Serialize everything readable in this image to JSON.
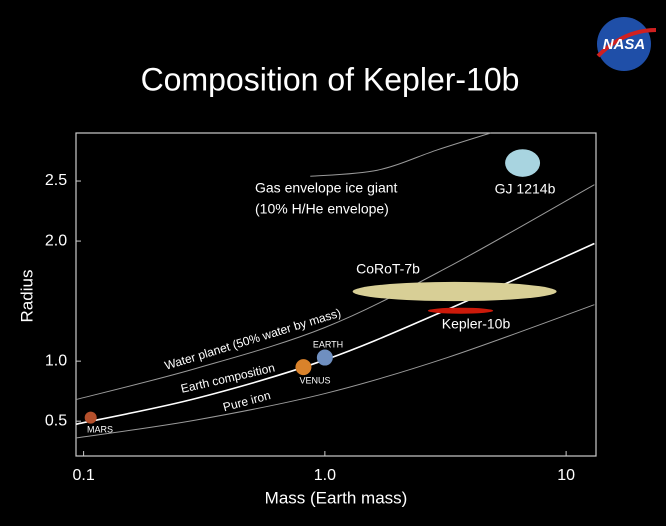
{
  "logo": "NASA",
  "chart_data": {
    "type": "scatter",
    "title": "Composition of Kepler-10b",
    "x_label": "Mass (Earth mass)",
    "y_label": "Radius",
    "xscale": "log",
    "xlim": [
      0.093,
      13.3
    ],
    "ylim": [
      0.21,
      2.9
    ],
    "xticks": [
      {
        "value": 0.1,
        "label": "0.1"
      },
      {
        "value": 1,
        "label": "1.0"
      },
      10
    ],
    "yticks": [
      0.5,
      {
        "value": 1,
        "label": "1.0"
      },
      {
        "value": 2,
        "label": "2.0"
      },
      2.5
    ],
    "curves": [
      {
        "name": "Pure iron",
        "color": "#9a9a9a",
        "mass": [
          0.093,
          0.293,
          1,
          3.22,
          13.1
        ],
        "radius": [
          0.36,
          0.51,
          0.73,
          1.03,
          1.47
        ]
      },
      {
        "name": "Earth composition",
        "color": "#ffffff",
        "mass": [
          0.093,
          0.293,
          1,
          3.22,
          13.1
        ],
        "radius": [
          0.475,
          0.69,
          1.01,
          1.43,
          1.98
        ]
      },
      {
        "name": "Water planet (50% water by mass)",
        "color": "#9a9a9a",
        "mass": [
          0.093,
          0.293,
          1,
          3.22,
          13.1
        ],
        "radius": [
          0.68,
          0.94,
          1.28,
          1.78,
          2.47
        ]
      },
      {
        "name": "Gas envelope ice giant",
        "note": "(10% H/He envelope)",
        "color": "#9a9a9a",
        "mass": [
          0.87,
          1.65,
          2.93,
          4.87
        ],
        "radius": [
          2.54,
          2.59,
          2.76,
          2.9
        ]
      }
    ],
    "solar_planets": [
      {
        "name": "MARS",
        "mass": 0.107,
        "radius": 0.53,
        "color": "#b5502c"
      },
      {
        "name": "EARTH",
        "mass": 1.0,
        "radius": 1.03,
        "color": "#6f8fc0"
      },
      {
        "name": "VENUS",
        "mass": 0.815,
        "radius": 0.95,
        "color": "#d9822b"
      }
    ],
    "exoplanets": [
      {
        "name": "GJ 1214b",
        "mass": 6.6,
        "radius": 2.65,
        "mass_range": [
          5.63,
          7.86
        ],
        "radius_range": [
          2.53,
          2.76
        ],
        "color": "#a8d4e0"
      },
      {
        "name": "CoRoT-7b",
        "mass": 3.45,
        "radius": 1.58,
        "mass_range": [
          1.3,
          9.1
        ],
        "radius_range": [
          1.5,
          1.66
        ],
        "color": "#d8cf96"
      },
      {
        "name": "Kepler-10b",
        "mass": 3.65,
        "radius": 1.42,
        "mass_range": [
          2.66,
          4.96
        ],
        "radius_range": [
          1.39,
          1.44
        ],
        "color": "#cc1a0a"
      }
    ]
  }
}
